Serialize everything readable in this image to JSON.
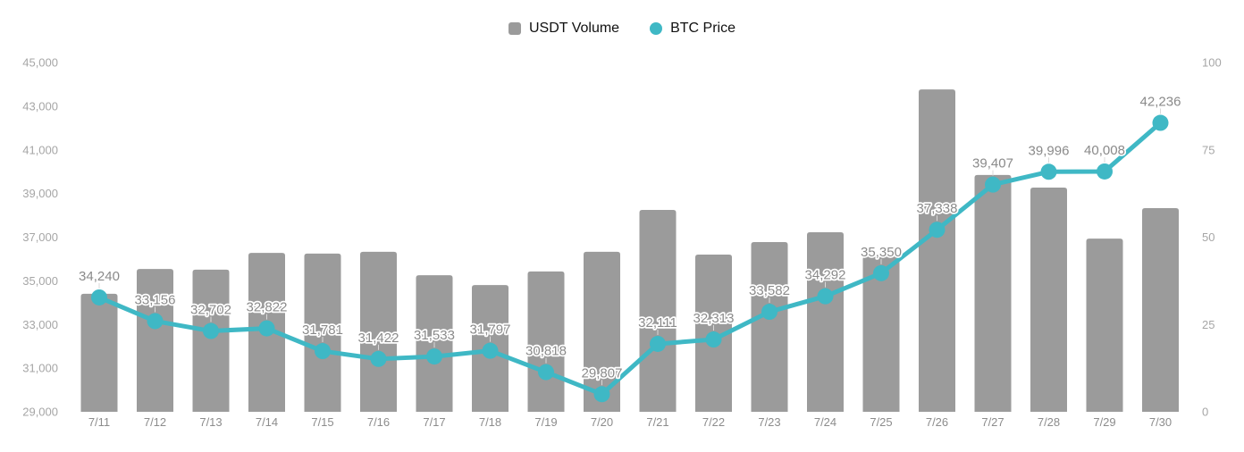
{
  "legend": {
    "items": [
      {
        "label": "USDT Volume",
        "marker": "square",
        "color": "#9b9b9b"
      },
      {
        "label": "BTC Price",
        "marker": "circle",
        "color": "#3fb8c5"
      }
    ]
  },
  "chart_data": {
    "type": "bar+line",
    "categories": [
      "7/11",
      "7/12",
      "7/13",
      "7/14",
      "7/15",
      "7/16",
      "7/17",
      "7/18",
      "7/19",
      "7/20",
      "7/21",
      "7/22",
      "7/23",
      "7/24",
      "7/25",
      "7/26",
      "7/27",
      "7/28",
      "7/29",
      "7/30"
    ],
    "series": [
      {
        "name": "USDT Volume",
        "type": "bar",
        "axis": "right",
        "color": "#9b9b9b",
        "values": [
          33.8,
          40.9,
          40.7,
          45.5,
          45.3,
          45.8,
          39.1,
          36.3,
          40.2,
          45.8,
          57.8,
          45.0,
          48.6,
          51.4,
          44.5,
          92.3,
          67.8,
          64.2,
          49.6,
          58.3
        ]
      },
      {
        "name": "BTC Price",
        "type": "line",
        "axis": "left",
        "color": "#3fb8c5",
        "values": [
          34240,
          33156,
          32702,
          32822,
          31781,
          31422,
          31533,
          31797,
          30818,
          29807,
          32111,
          32313,
          33582,
          34292,
          35350,
          37338,
          39407,
          39996,
          40008,
          42236
        ],
        "point_labels": [
          "34,240",
          "33,156",
          "32,702",
          "32,822",
          "31,781",
          "31,422",
          "31,533",
          "31,797",
          "30,818",
          "29,807",
          "32,111",
          "32,313",
          "33,582",
          "34,292",
          "35,350",
          "37,338",
          "39,407",
          "39,996",
          "40,008",
          "42,236"
        ]
      }
    ],
    "left_axis": {
      "min": 29000,
      "max": 45000,
      "tick_step": 2000,
      "tick_labels": [
        "45,000",
        "43,000",
        "41,000",
        "39,000",
        "37,000",
        "35,000",
        "33,000",
        "31,000",
        "29,000"
      ]
    },
    "right_axis": {
      "min": 0,
      "max": 100,
      "tick_step": 25,
      "tick_labels": [
        "100",
        "75",
        "50",
        "25",
        "0"
      ]
    },
    "grid": false,
    "legend_position": "top-center",
    "colors": {
      "bar": "#9b9b9b",
      "line": "#3fb8c5",
      "point_label": "#8a8a8a",
      "axis_label": "#a6a6a6",
      "x_label": "#8c8c8c",
      "leader_line": "#d9d9d9",
      "background": "#ffffff"
    }
  }
}
